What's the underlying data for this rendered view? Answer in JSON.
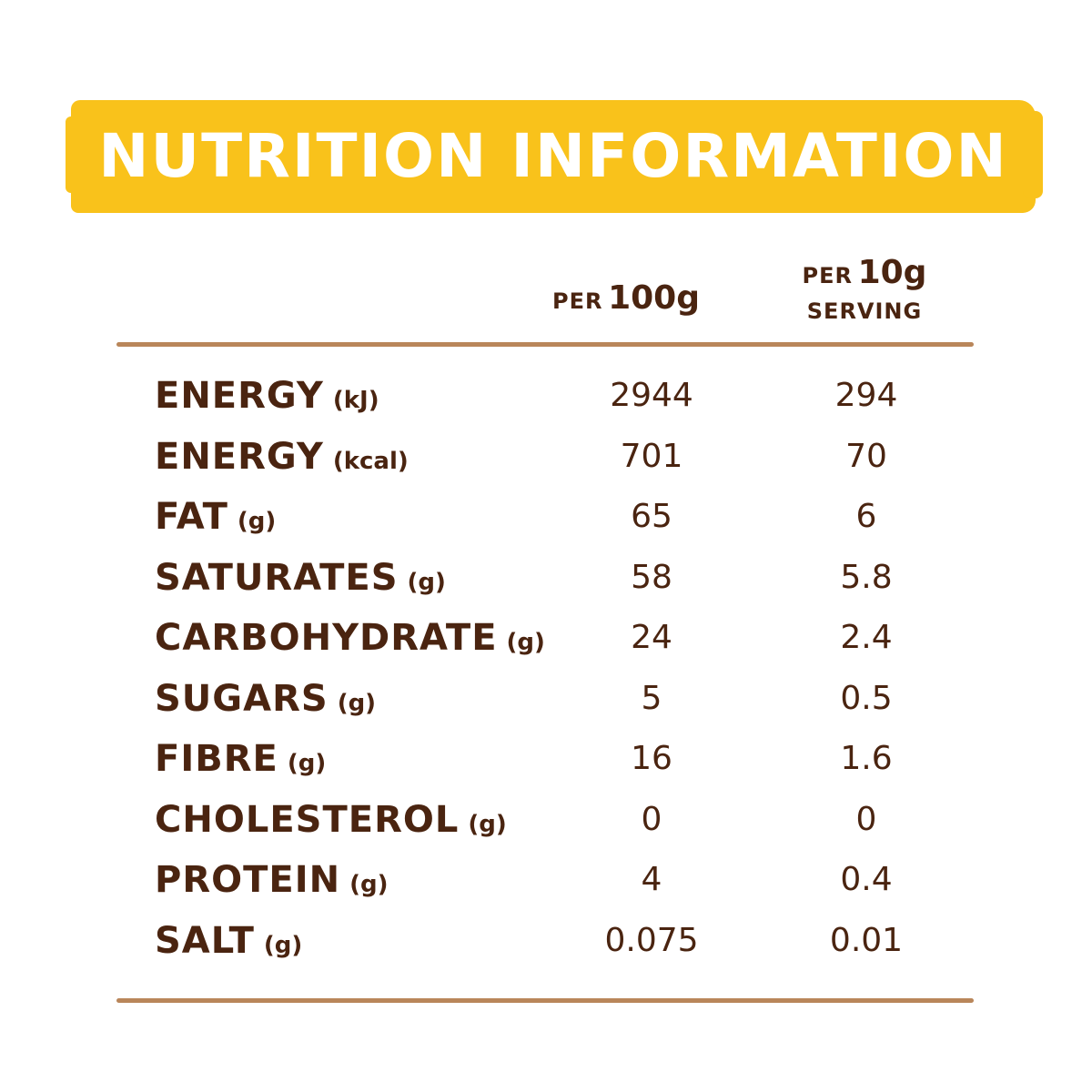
{
  "header": {
    "title": "NUTRITION INFORMATION"
  },
  "columns": {
    "per100": {
      "prefix": "PER",
      "amount": "100g"
    },
    "per10": {
      "prefix": "PER",
      "amount": "10g",
      "suffix": "SERVING"
    }
  },
  "rows": [
    {
      "name": "ENERGY",
      "unit": "(kJ)",
      "per100": "2944",
      "per10": "294"
    },
    {
      "name": "ENERGY",
      "unit": "(kcal)",
      "per100": "701",
      "per10": "70"
    },
    {
      "name": "FAT",
      "unit": "(g)",
      "per100": "65",
      "per10": "6"
    },
    {
      "name": "SATURATES",
      "unit": "(g)",
      "per100": "58",
      "per10": "5.8"
    },
    {
      "name": "CARBOHYDRATE",
      "unit": "(g)",
      "per100": "24",
      "per10": "2.4"
    },
    {
      "name": "SUGARS",
      "unit": "(g)",
      "per100": "5",
      "per10": "0.5"
    },
    {
      "name": "FIBRE",
      "unit": "(g)",
      "per100": "16",
      "per10": "1.6"
    },
    {
      "name": "CHOLESTEROL",
      "unit": "(g)",
      "per100": "0",
      "per10": "0"
    },
    {
      "name": "PROTEIN",
      "unit": "(g)",
      "per100": "4",
      "per10": "0.4"
    },
    {
      "name": "SALT",
      "unit": "(g)",
      "per100": "0.075",
      "per10": "0.01"
    }
  ],
  "colors": {
    "banner": "#f9c21b",
    "text": "#4a2410",
    "rule": "#b9865a"
  }
}
